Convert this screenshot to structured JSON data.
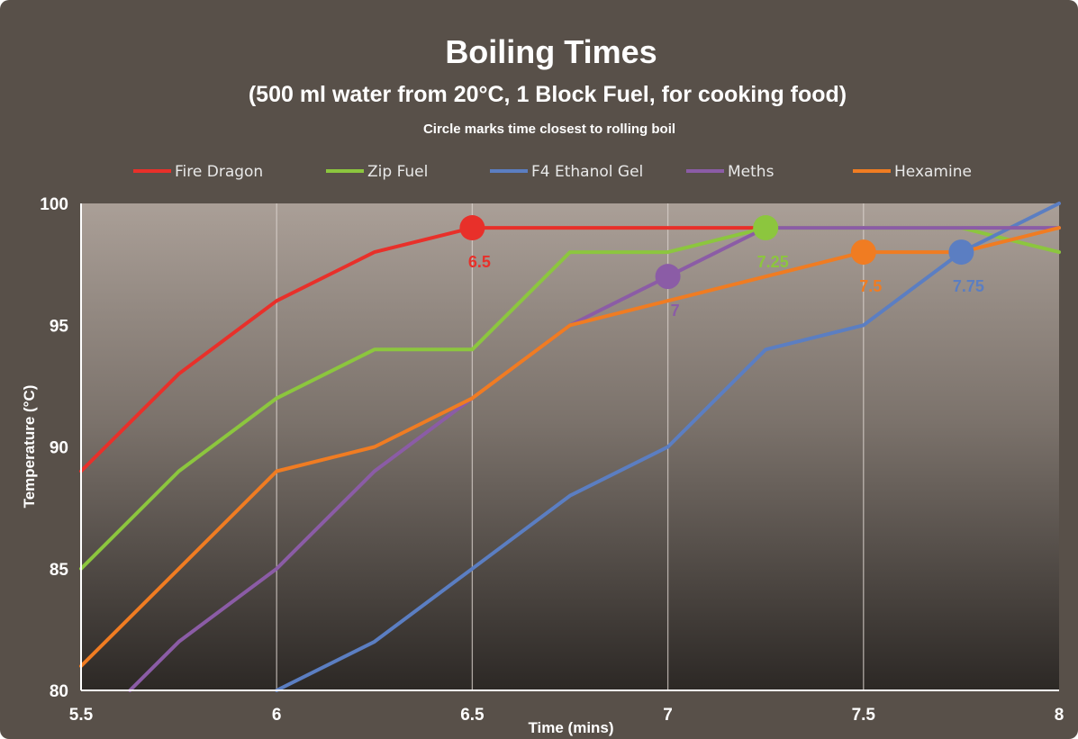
{
  "chart_data": {
    "type": "line",
    "title": "Boiling Times",
    "subtitle": "(500 ml water from 20°C, 1 Block Fuel, for cooking food)",
    "note": "Circle marks time closest to rolling boil",
    "xlabel": "Time (mins)",
    "ylabel": "Temperature (°C)",
    "xlim": [
      5.5,
      8
    ],
    "ylim": [
      80,
      100
    ],
    "x_ticks": [
      "5.5",
      "6",
      "6.5",
      "7",
      "7.5",
      "8"
    ],
    "y_ticks": [
      "80",
      "85",
      "90",
      "95",
      "100"
    ],
    "grid": "vertical",
    "legend_position": "top",
    "series": [
      {
        "name": "Fire Dragon",
        "color": "#e8302a",
        "x": [
          5.5,
          5.75,
          6,
          6.25,
          6.5,
          6.75,
          7,
          7.25
        ],
        "y": [
          89,
          93,
          96,
          98,
          99,
          99,
          99,
          99
        ],
        "marker": {
          "x": 6.5,
          "y": 99,
          "label": "6.5"
        }
      },
      {
        "name": "Zip Fuel",
        "color": "#8cc63e",
        "x": [
          5.5,
          5.75,
          6,
          6.25,
          6.5,
          6.75,
          7,
          7.25,
          7.5,
          7.75,
          8
        ],
        "y": [
          85,
          89,
          92,
          94,
          94,
          98,
          98,
          99,
          99,
          99,
          98
        ],
        "marker": {
          "x": 7.25,
          "y": 99,
          "label": "7.25"
        }
      },
      {
        "name": "F4 Ethanol Gel",
        "color": "#5b7ec2",
        "x": [
          6,
          6.25,
          6.5,
          6.75,
          7,
          7.25,
          7.5,
          7.75,
          8
        ],
        "y": [
          80,
          82,
          85,
          88,
          90,
          94,
          95,
          98,
          100
        ],
        "marker": {
          "x": 7.75,
          "y": 98,
          "label": "7.75"
        }
      },
      {
        "name": "Meths",
        "color": "#8b5ca6",
        "x": [
          5.625,
          5.75,
          6,
          6.25,
          6.5,
          6.75,
          7,
          7.25,
          7.5,
          7.75,
          8
        ],
        "y": [
          80,
          82,
          85,
          89,
          92,
          95,
          97,
          99,
          99,
          99,
          99
        ],
        "marker": {
          "x": 7,
          "y": 97,
          "label": "7"
        }
      },
      {
        "name": "Hexamine",
        "color": "#f07c22",
        "x": [
          5.5,
          5.75,
          6,
          6.25,
          6.5,
          6.75,
          7,
          7.25,
          7.5,
          7.75,
          8
        ],
        "y": [
          81,
          85,
          89,
          90,
          92,
          95,
          96,
          97,
          98,
          98,
          99
        ],
        "marker": {
          "x": 7.5,
          "y": 98,
          "label": "7.5"
        }
      }
    ]
  }
}
